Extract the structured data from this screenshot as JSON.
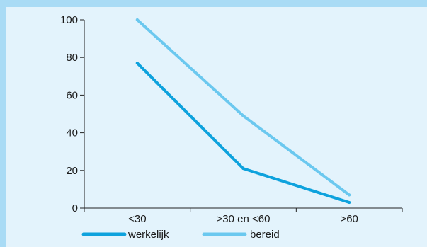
{
  "chart_data": {
    "type": "line",
    "categories": [
      "<30",
      ">30 en <60",
      ">60"
    ],
    "series": [
      {
        "name": "werkelijk",
        "values": [
          77,
          21,
          3
        ],
        "color": "#0ea2dd"
      },
      {
        "name": "bereid",
        "values": [
          100,
          49,
          7
        ],
        "color": "#6bc8ef"
      }
    ],
    "ylim": [
      0,
      100
    ],
    "yticks": [
      0,
      20,
      40,
      60,
      80,
      100
    ],
    "grid": false,
    "legend": "bottom-left"
  }
}
